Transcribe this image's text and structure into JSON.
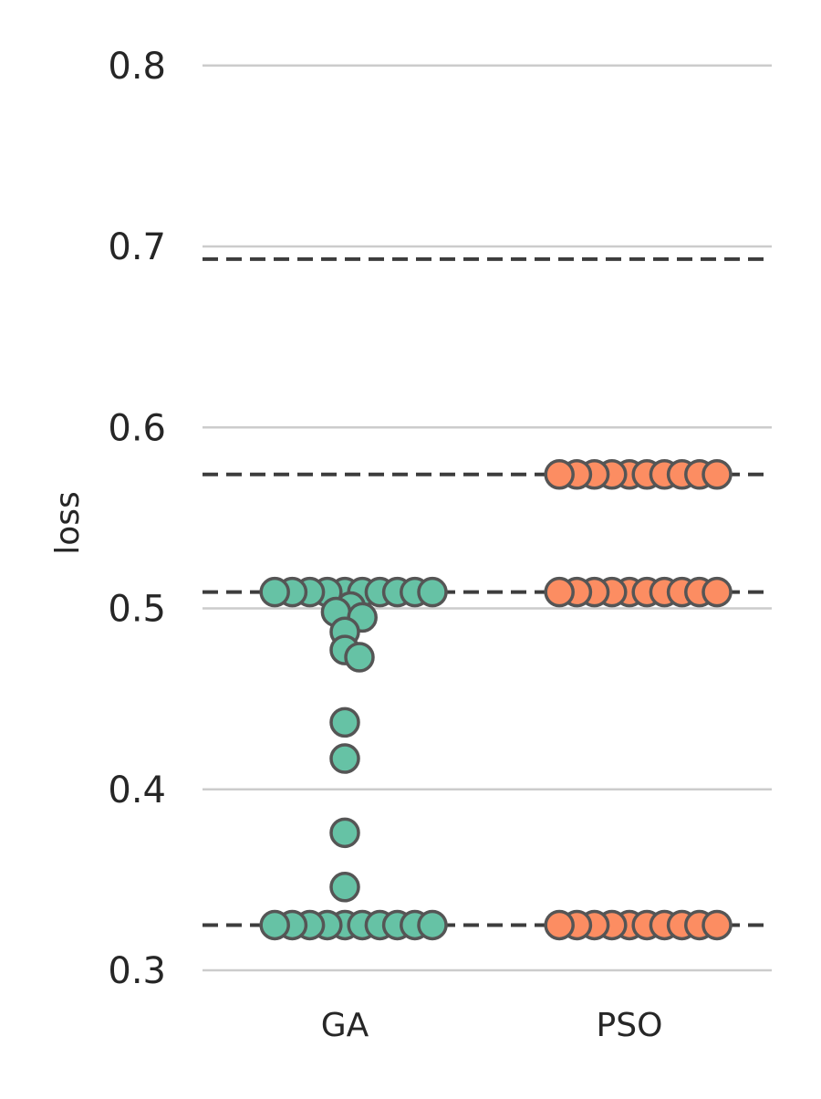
{
  "chart_data": {
    "type": "scatter",
    "subtype": "swarm",
    "title": "",
    "xlabel": "",
    "ylabel": "loss",
    "categories": [
      "GA",
      "PSO"
    ],
    "ylim": [
      0.29,
      0.83
    ],
    "yticks": [
      0.3,
      0.4,
      0.5,
      0.6,
      0.7,
      0.8
    ],
    "ytick_labels": [
      "0.3",
      "0.4",
      "0.5",
      "0.6",
      "0.7",
      "0.8"
    ],
    "grid": true,
    "reference_lines": [
      0.693,
      0.574,
      0.509,
      0.325
    ],
    "series": [
      {
        "category": "GA",
        "color": "#66c2a5",
        "values": [
          0.509,
          0.509,
          0.509,
          0.509,
          0.509,
          0.509,
          0.509,
          0.509,
          0.509,
          0.509,
          0.501,
          0.498,
          0.495,
          0.487,
          0.477,
          0.473,
          0.437,
          0.417,
          0.376,
          0.346,
          0.325,
          0.325,
          0.325,
          0.325,
          0.325,
          0.325,
          0.325,
          0.325,
          0.325,
          0.325
        ]
      },
      {
        "category": "PSO",
        "color": "#fc8d62",
        "values": [
          0.574,
          0.574,
          0.574,
          0.574,
          0.574,
          0.574,
          0.574,
          0.574,
          0.574,
          0.574,
          0.509,
          0.509,
          0.509,
          0.509,
          0.509,
          0.509,
          0.509,
          0.509,
          0.509,
          0.509,
          0.325,
          0.325,
          0.325,
          0.325,
          0.325,
          0.325,
          0.325,
          0.325,
          0.325,
          0.325
        ]
      }
    ]
  }
}
